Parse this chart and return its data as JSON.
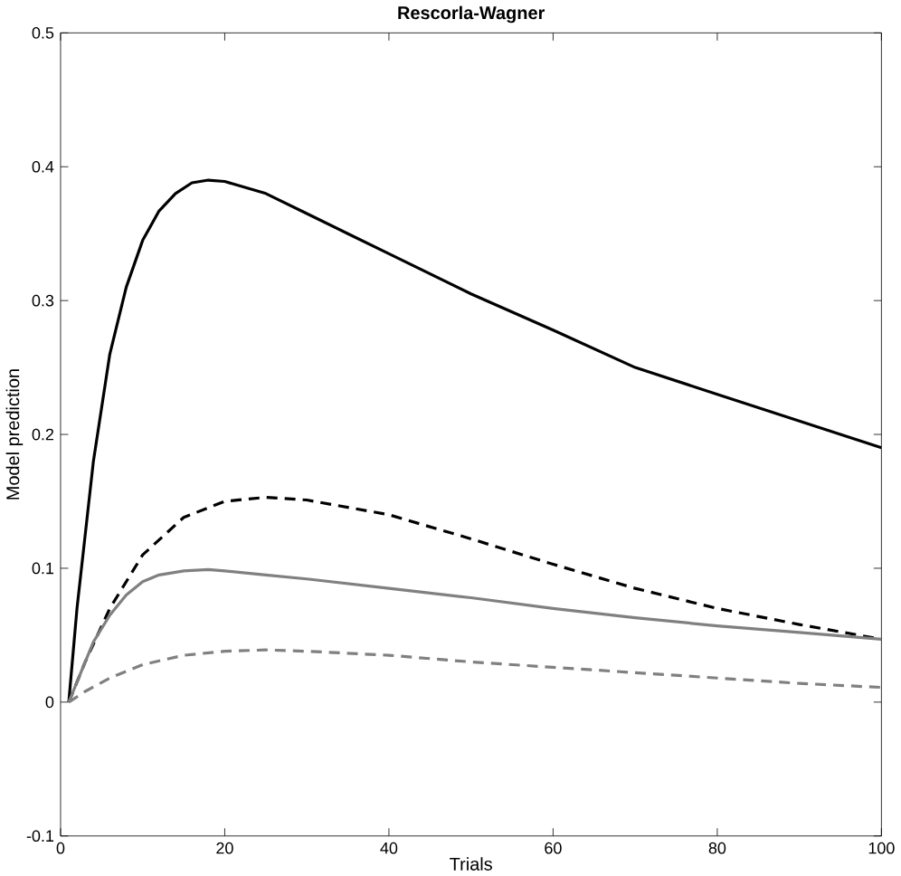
{
  "chart_data": {
    "type": "line",
    "title": "Rescorla-Wagner",
    "xlabel": "Trials",
    "ylabel": "Model prediction",
    "xlim": [
      0,
      100
    ],
    "ylim": [
      -0.1,
      0.5
    ],
    "xticks": [
      0,
      20,
      40,
      60,
      80,
      100
    ],
    "yticks": [
      -0.1,
      0,
      0.1,
      0.2,
      0.3,
      0.4,
      0.5
    ],
    "marker": "none",
    "series": [
      {
        "color": "#000000",
        "line_style": "solid",
        "x": [
          1,
          2,
          4,
          6,
          8,
          10,
          12,
          14,
          16,
          18,
          20,
          25,
          30,
          35,
          40,
          50,
          60,
          70,
          80,
          90,
          100
        ],
        "values": [
          0,
          0.07,
          0.18,
          0.26,
          0.31,
          0.345,
          0.367,
          0.38,
          0.388,
          0.39,
          0.389,
          0.38,
          0.365,
          0.35,
          0.335,
          0.305,
          0.278,
          0.25,
          0.23,
          0.21,
          0.19
        ]
      },
      {
        "color": "#000000",
        "line_style": "dashed",
        "x": [
          1,
          3,
          6,
          10,
          15,
          20,
          25,
          30,
          40,
          50,
          60,
          70,
          80,
          90,
          100
        ],
        "values": [
          0,
          0.03,
          0.07,
          0.11,
          0.138,
          0.15,
          0.153,
          0.151,
          0.14,
          0.122,
          0.103,
          0.085,
          0.07,
          0.058,
          0.047
        ]
      },
      {
        "color": "#808080",
        "line_style": "solid",
        "x": [
          1,
          2,
          4,
          6,
          8,
          10,
          12,
          15,
          18,
          20,
          25,
          30,
          40,
          50,
          60,
          70,
          80,
          90,
          100
        ],
        "values": [
          0,
          0.015,
          0.045,
          0.065,
          0.08,
          0.09,
          0.095,
          0.098,
          0.099,
          0.098,
          0.095,
          0.092,
          0.085,
          0.078,
          0.07,
          0.063,
          0.057,
          0.052,
          0.047
        ]
      },
      {
        "color": "#808080",
        "line_style": "dashed",
        "x": [
          1,
          3,
          6,
          10,
          15,
          20,
          25,
          30,
          40,
          50,
          60,
          70,
          80,
          90,
          100
        ],
        "values": [
          0,
          0.008,
          0.018,
          0.028,
          0.035,
          0.038,
          0.039,
          0.038,
          0.035,
          0.03,
          0.026,
          0.022,
          0.018,
          0.014,
          0.011
        ]
      }
    ]
  }
}
